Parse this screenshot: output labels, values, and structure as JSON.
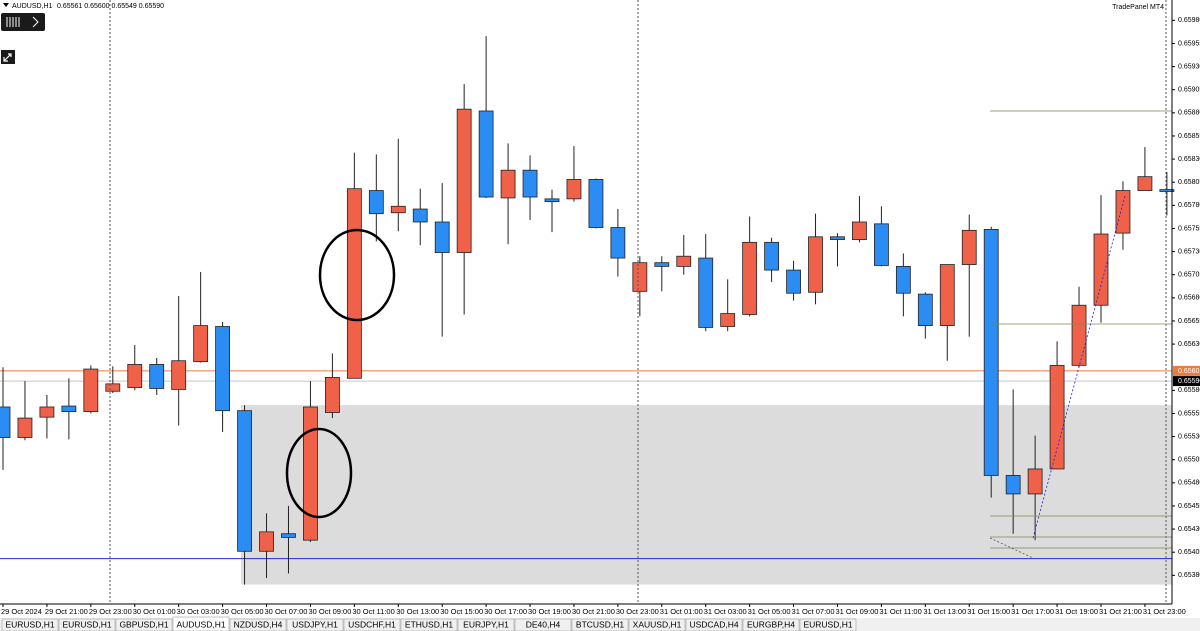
{
  "header": {
    "symbol": "AUDUSD,H1",
    "quote": "0.65561 0.65600 0.65549 0.65590",
    "panel": "TradePanel MT4"
  },
  "tabs": [
    "EURUSD,H1",
    "EURUSD,H1",
    "GBPUSD,H1",
    "AUDUSD,H1",
    "NZDUSD,H4",
    "USDJPY,H1",
    "USDCHF,H1",
    "ETHUSD,H1",
    "EURJPY,H1",
    "DE40,H4",
    "BTCUSD,H1",
    "XAUUSD,H1",
    "USDCAD,H4",
    "EURGBP,H4",
    "EURUSD,H1"
  ],
  "active_tab": 3,
  "chart_data": {
    "type": "candlestick",
    "categories": [
      "29 Oct 2024",
      null,
      "29 Oct 21:00",
      null,
      "29 Oct 23:00",
      null,
      "30 Oct 01:00",
      null,
      "30 Oct 03:00",
      null,
      "30 Oct 05:00",
      null,
      "30 Oct 07:00",
      null,
      "30 Oct 09:00",
      null,
      "30 Oct 11:00",
      null,
      "30 Oct 13:00",
      null,
      "30 Oct 15:00",
      null,
      "30 Oct 17:00",
      null,
      "30 Oct 19:00",
      null,
      "30 Oct 21:00",
      null,
      "30 Oct 23:00",
      null,
      "31 Oct 01:00",
      null,
      "31 Oct 03:00",
      null,
      "31 Oct 05:00",
      null,
      "31 Oct 07:00",
      null,
      "31 Oct 09:00",
      null,
      "31 Oct 11:00",
      null,
      "31 Oct 13:00",
      null,
      "31 Oct 15:00",
      null,
      "31 Oct 17:00",
      null,
      "31 Oct 19:00",
      null,
      "31 Oct 21:00",
      null,
      "31 Oct 23:00",
      null
    ],
    "open": [
      0.65562,
      0.65529,
      0.65551,
      0.65563,
      0.65557,
      0.65579,
      0.65583,
      0.65608,
      0.65581,
      0.65611,
      0.65649,
      0.65558,
      0.65406,
      0.65425,
      0.65418,
      0.65556,
      0.65593,
      0.65796,
      0.65772,
      0.65776,
      0.65762,
      0.65729,
      0.65882,
      0.65788,
      0.65818,
      0.65787,
      0.65787,
      0.65808,
      0.65756,
      0.65687,
      0.65718,
      0.65714,
      0.65723,
      0.65649,
      0.65662,
      0.6574,
      0.6571,
      0.65686,
      0.65746,
      0.65743,
      0.6576,
      0.65714,
      0.65684,
      0.6565,
      0.65716,
      0.65754,
      0.65488,
      0.65468,
      0.65495,
      0.65607,
      0.65672,
      0.6575,
      0.65796,
      0.65797
    ],
    "high": [
      0.65605,
      0.6559,
      0.65575,
      0.65593,
      0.65607,
      0.65606,
      0.65629,
      0.65615,
      0.65682,
      0.65708,
      0.65654,
      0.65564,
      0.65447,
      0.65455,
      0.6559,
      0.6562,
      0.65837,
      0.65835,
      0.65852,
      0.65798,
      0.65804,
      0.65911,
      0.65963,
      0.65847,
      0.65834,
      0.65797,
      0.65844,
      0.65809,
      0.65776,
      0.65725,
      0.65725,
      0.65748,
      0.65749,
      0.657,
      0.65768,
      0.65745,
      0.6572,
      0.65771,
      0.6575,
      0.6579,
      0.65779,
      0.65728,
      0.65686,
      0.65716,
      0.6577,
      0.65757,
      0.65581,
      0.65531,
      0.65633,
      0.65692,
      0.65791,
      0.65806,
      0.65843,
      0.65816
    ],
    "low": [
      0.65494,
      0.65526,
      0.65528,
      0.65527,
      0.65555,
      0.65577,
      0.6558,
      0.65575,
      0.65542,
      0.6561,
      0.65535,
      0.6537,
      0.65377,
      0.65382,
      0.65416,
      0.6555,
      0.65593,
      0.65741,
      0.65752,
      0.65737,
      0.65638,
      0.65662,
      0.65788,
      0.65738,
      0.65764,
      0.65751,
      0.65784,
      0.65755,
      0.65703,
      0.6566,
      0.65687,
      0.65705,
      0.65644,
      0.65644,
      0.6566,
      0.65697,
      0.65677,
      0.65673,
      0.65714,
      0.6574,
      0.65714,
      0.6566,
      0.65636,
      0.65612,
      0.65638,
      0.65464,
      0.65425,
      0.65418,
      0.65495,
      0.65605,
      0.65653,
      0.65732,
      0.65796,
      0.65769
    ],
    "close": [
      0.65529,
      0.6555,
      0.65562,
      0.65557,
      0.65603,
      0.65587,
      0.65608,
      0.65582,
      0.65612,
      0.6565,
      0.65558,
      0.65406,
      0.65427,
      0.65421,
      0.65562,
      0.65594,
      0.65798,
      0.65771,
      0.65779,
      0.65762,
      0.65729,
      0.65884,
      0.65789,
      0.65818,
      0.65789,
      0.65784,
      0.65808,
      0.65756,
      0.65723,
      0.65718,
      0.65714,
      0.65725,
      0.65648,
      0.65663,
      0.6574,
      0.6571,
      0.65685,
      0.65746,
      0.65743,
      0.65762,
      0.65715,
      0.65685,
      0.6565,
      0.65716,
      0.65753,
      0.65488,
      0.65468,
      0.65495,
      0.65607,
      0.65672,
      0.65749,
      0.65796,
      0.65811,
      0.65795
    ],
    "up_color": "#f0614a",
    "down_color": "#2b8cf3",
    "ylim": [
      0.65349,
      0.66002
    ],
    "yticks": [
      {
        "value": 0.6598,
        "label": "0.65980"
      },
      {
        "value": 0.65955,
        "label": "0.65955"
      },
      {
        "value": 0.6593,
        "label": "0.65930"
      },
      {
        "value": 0.65905,
        "label": "0.65905"
      },
      {
        "value": 0.6588,
        "label": "0.65880"
      },
      {
        "value": 0.65855,
        "label": "0.65855"
      },
      {
        "value": 0.6583,
        "label": "0.65830"
      },
      {
        "value": 0.65805,
        "label": "0.65805"
      },
      {
        "value": 0.6578,
        "label": "0.65780"
      },
      {
        "value": 0.65755,
        "label": "0.65755"
      },
      {
        "value": 0.6573,
        "label": "0.65730"
      },
      {
        "value": 0.65705,
        "label": "0.65705"
      },
      {
        "value": 0.6568,
        "label": "0.65680"
      },
      {
        "value": 0.65655,
        "label": "0.65655"
      },
      {
        "value": 0.6563,
        "label": "0.65630"
      },
      {
        "value": 0.6558,
        "label": "0.65580"
      },
      {
        "value": 0.65555,
        "label": "0.65555"
      },
      {
        "value": 0.6553,
        "label": "0.65530"
      },
      {
        "value": 0.65505,
        "label": "0.65505"
      },
      {
        "value": 0.6548,
        "label": "0.65480"
      },
      {
        "value": 0.65455,
        "label": "0.65455"
      },
      {
        "value": 0.6543,
        "label": "0.65430"
      },
      {
        "value": 0.65405,
        "label": "0.65405"
      },
      {
        "value": 0.6538,
        "label": "0.65380"
      }
    ],
    "hlines": [
      {
        "value": 0.65601,
        "label": "0.65601",
        "color": "#f07a3c"
      },
      {
        "value": 0.6559,
        "label": "0.65590",
        "color": "#c8c8c8"
      },
      {
        "value": 0.65398,
        "color": "#2828d8"
      }
    ],
    "zone": {
      "from": 0.6537,
      "to": 0.65564,
      "color": "#dcdcdc"
    }
  }
}
